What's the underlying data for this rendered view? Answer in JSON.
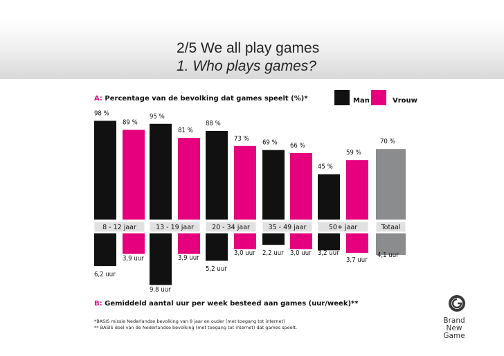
{
  "slide": {
    "title_line1": "2/5 We all play games",
    "title_line2": "1. Who plays games?"
  },
  "legend": [
    {
      "name": "Man",
      "color": "#111111"
    },
    {
      "name": "Vrouw",
      "color": "#e6007e"
    }
  ],
  "colors": {
    "man": "#111111",
    "vrouw": "#e6007e",
    "total": "#8a8c8e"
  },
  "chart_data": {
    "type": "bar",
    "panel_a": {
      "prefix": "A:",
      "title": "Percentage van de bevolking dat games speelt (%)*",
      "unit": "%",
      "categories": [
        "8 - 12 jaar",
        "13 - 19 jaar",
        "20 - 34 jaar",
        "35 - 49 jaar",
        "50+ jaar",
        "Totaal"
      ],
      "series": [
        {
          "name": "Man",
          "values": [
            98,
            95,
            88,
            69,
            45,
            null
          ]
        },
        {
          "name": "Vrouw",
          "values": [
            89,
            81,
            73,
            66,
            59,
            null
          ]
        },
        {
          "name": "Totaal",
          "values": [
            null,
            null,
            null,
            null,
            null,
            70
          ]
        }
      ],
      "labels": {
        "Man": [
          "98 %",
          "95 %",
          "88 %",
          "69 %",
          "45 %",
          null
        ],
        "Vrouw": [
          "89 %",
          "81 %",
          "73 %",
          "66 %",
          "59 %",
          null
        ],
        "Totaal": [
          null,
          null,
          null,
          null,
          null,
          "70 %"
        ]
      }
    },
    "panel_b": {
      "prefix": "B:",
      "title": "Gemiddeld aantal uur per week besteed aan games (uur/week)**",
      "unit": "uur",
      "categories": [
        "8 - 12 jaar",
        "13 - 19 jaar",
        "20 - 34 jaar",
        "35 - 49 jaar",
        "50+ jaar",
        "Totaal"
      ],
      "series": [
        {
          "name": "Man",
          "values": [
            6.2,
            9.8,
            5.2,
            2.2,
            3.2,
            null
          ]
        },
        {
          "name": "Vrouw",
          "values": [
            3.9,
            3.9,
            3.0,
            3.0,
            3.7,
            null
          ]
        },
        {
          "name": "Totaal",
          "values": [
            null,
            null,
            null,
            null,
            null,
            4.1
          ]
        }
      ],
      "labels": {
        "Man": [
          "6,2 uur",
          "9.8 uur",
          "5,2 uur",
          "2,2 uur",
          "3,2 uur",
          null
        ],
        "Vrouw": [
          "3,9 uur",
          "3,9 uur",
          "3,0 uur",
          "3,0 uur",
          "3,7 uur",
          null
        ],
        "Totaal": [
          null,
          null,
          null,
          null,
          null,
          "4,1 uur"
        ]
      }
    }
  },
  "footnotes": [
    "*BASIS missie Nederlandse bevolking van 8 jaar en ouder (met toegang tot internet)",
    "** BASIS doel van de Nederlandse bevolking (met toegang tot internet) dat games speelt."
  ],
  "logo": {
    "icon": "brand-new-game-logo-icon",
    "line1": "Brand",
    "line2": "New",
    "line3": "Game"
  }
}
